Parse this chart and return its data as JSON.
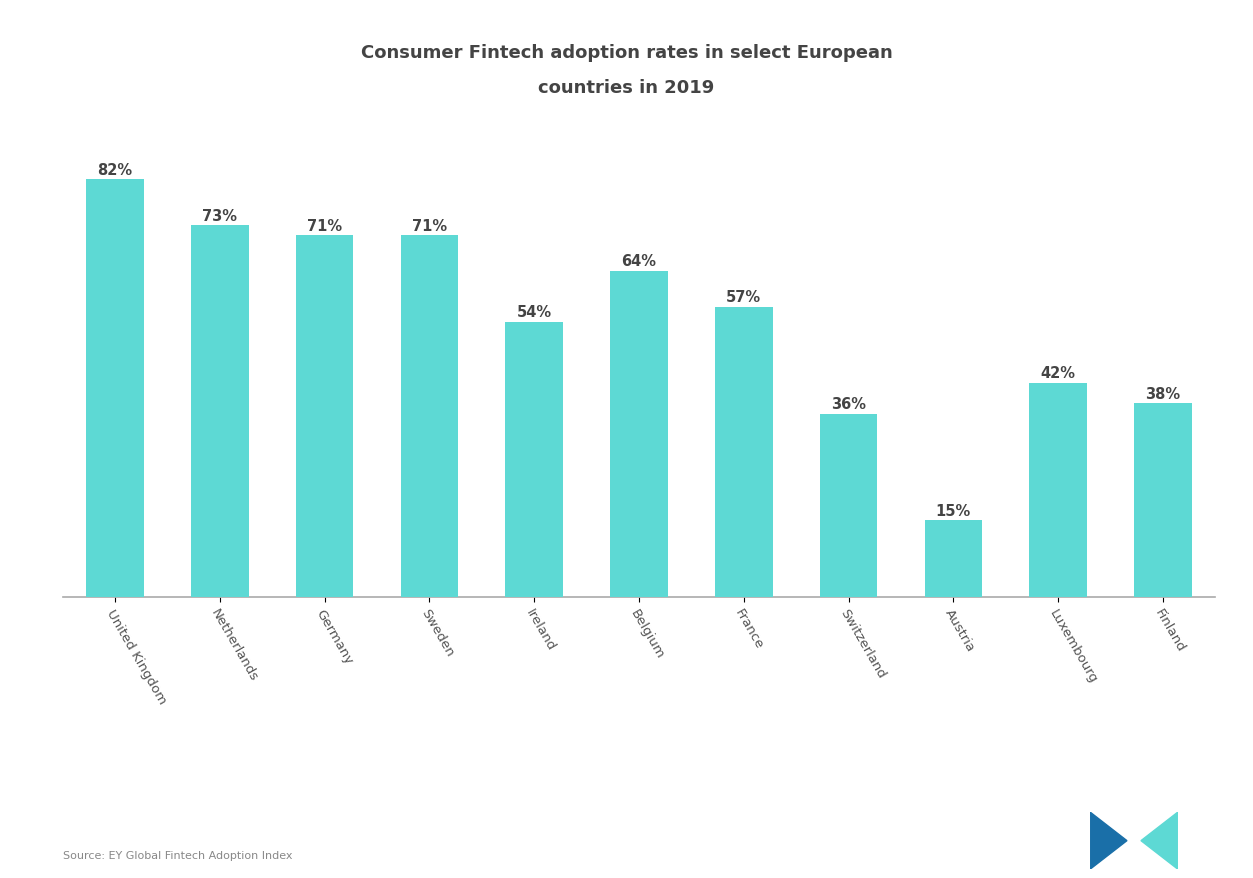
{
  "title_line1": "Consumer Fintech adoption rates in select European",
  "title_line2": "countries in 2019",
  "categories": [
    "United Kingdom",
    "Netherlands",
    "Germany",
    "Sweden",
    "Ireland",
    "Belgium",
    "France",
    "Switzerland",
    "Austria",
    "Luxembourg",
    "Finland"
  ],
  "values": [
    82,
    73,
    71,
    71,
    54,
    64,
    57,
    36,
    15,
    42,
    38
  ],
  "bar_labels": [
    "82%",
    "73%",
    "71%",
    "71%",
    "54%",
    "64%",
    "57%",
    "36%",
    "15%",
    "42%",
    "38%"
  ],
  "bar_color": "#5dd9d4",
  "background_color": "#ffffff",
  "plot_bg_color": "#f5f5f5",
  "text_color": "#444444",
  "label_color": "#444444",
  "axis_line_color": "#aaaaaa",
  "source_text": "Source: EY Global Fintech Adoption Index",
  "ylim": [
    0,
    95
  ],
  "bar_width": 0.55,
  "logo_color1": "#1a6fa8",
  "logo_color2": "#5dd9d4"
}
